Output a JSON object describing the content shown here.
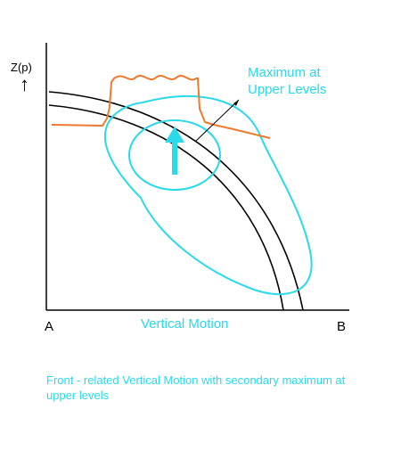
{
  "axis": {
    "y_label": "Z(p)",
    "y_arrow_glyph": "↑",
    "x_label": "Vertical Motion",
    "left_point": "A",
    "right_point": "B"
  },
  "annotation": {
    "line1": "Maximum at",
    "line2": "Upper Levels"
  },
  "caption": "Front - related Vertical Motion with secondary maximum at upper levels",
  "colors": {
    "front_lines": "#000000",
    "contours": "#2ad9ea",
    "profile": "#ee7a2f",
    "arrow": "#2ad9ea"
  }
}
